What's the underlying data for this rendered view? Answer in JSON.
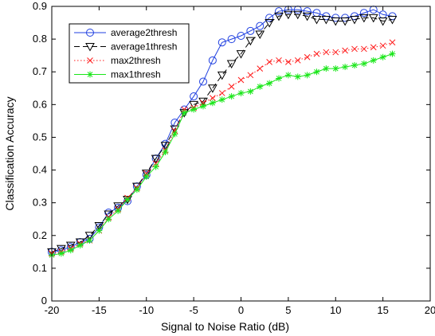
{
  "chart_data": {
    "type": "line",
    "title": "",
    "xlabel": "Signal to Noise Ratio  (dB)",
    "ylabel": "Classification Accuracy",
    "xlim": [
      -20,
      20
    ],
    "ylim": [
      0,
      0.9
    ],
    "xticks": [
      -20,
      -15,
      -10,
      -5,
      0,
      5,
      10,
      15,
      20
    ],
    "yticks": [
      0,
      0.1,
      0.2,
      0.3,
      0.4,
      0.5,
      0.6,
      0.7,
      0.8,
      0.9
    ],
    "xtick_labels": [
      "-20",
      "-15",
      "-10",
      "-5",
      "0",
      "5",
      "10",
      "15",
      "20"
    ],
    "ytick_labels": [
      "0",
      "0.1",
      "0.2",
      "0.3",
      "0.4",
      "0.5",
      "0.6",
      "0.7",
      "0.8",
      "0.9"
    ],
    "grid": false,
    "legend_position": "top-left",
    "x": [
      -20,
      -19,
      -18,
      -17,
      -16,
      -15,
      -14,
      -13,
      -12,
      -11,
      -10,
      -9,
      -8,
      -7,
      -6,
      -5,
      -4,
      -3,
      -2,
      -1,
      0,
      1,
      2,
      3,
      4,
      5,
      6,
      7,
      8,
      9,
      10,
      11,
      12,
      13,
      14,
      15,
      16
    ],
    "series": [
      {
        "name": "average2thresh",
        "color": "#1f3fe0",
        "dash": "solid",
        "marker": "circle",
        "values": [
          0.15,
          0.155,
          0.165,
          0.18,
          0.19,
          0.225,
          0.27,
          0.285,
          0.305,
          0.35,
          0.385,
          0.435,
          0.48,
          0.545,
          0.585,
          0.625,
          0.67,
          0.735,
          0.79,
          0.8,
          0.81,
          0.825,
          0.84,
          0.865,
          0.885,
          0.89,
          0.89,
          0.885,
          0.88,
          0.87,
          0.865,
          0.865,
          0.87,
          0.88,
          0.89,
          0.875,
          0.87
        ]
      },
      {
        "name": "average1thresh",
        "color": "#000000",
        "dash": "dashed",
        "marker": "triangle-down",
        "values": [
          0.15,
          0.16,
          0.17,
          0.18,
          0.2,
          0.23,
          0.265,
          0.29,
          0.31,
          0.35,
          0.39,
          0.435,
          0.475,
          0.525,
          0.575,
          0.6,
          0.61,
          0.65,
          0.69,
          0.725,
          0.755,
          0.795,
          0.815,
          0.85,
          0.87,
          0.875,
          0.875,
          0.87,
          0.86,
          0.86,
          0.855,
          0.855,
          0.86,
          0.865,
          0.865,
          0.855,
          0.86
        ]
      },
      {
        "name": "max2thresh",
        "color": "#ff1a1a",
        "dash": "dotted",
        "marker": "x",
        "values": [
          0.145,
          0.15,
          0.16,
          0.175,
          0.185,
          0.215,
          0.255,
          0.28,
          0.315,
          0.345,
          0.39,
          0.42,
          0.46,
          0.52,
          0.585,
          0.59,
          0.605,
          0.62,
          0.635,
          0.655,
          0.675,
          0.69,
          0.71,
          0.73,
          0.735,
          0.73,
          0.735,
          0.745,
          0.755,
          0.76,
          0.76,
          0.765,
          0.77,
          0.77,
          0.775,
          0.78,
          0.79
        ]
      },
      {
        "name": "max1thresh",
        "color": "#19e619",
        "dash": "solid",
        "marker": "asterisk",
        "values": [
          0.14,
          0.145,
          0.155,
          0.17,
          0.185,
          0.215,
          0.25,
          0.275,
          0.31,
          0.34,
          0.38,
          0.41,
          0.455,
          0.51,
          0.575,
          0.585,
          0.595,
          0.605,
          0.615,
          0.625,
          0.635,
          0.64,
          0.655,
          0.665,
          0.68,
          0.69,
          0.685,
          0.69,
          0.7,
          0.71,
          0.71,
          0.715,
          0.72,
          0.725,
          0.735,
          0.745,
          0.755
        ]
      }
    ]
  }
}
